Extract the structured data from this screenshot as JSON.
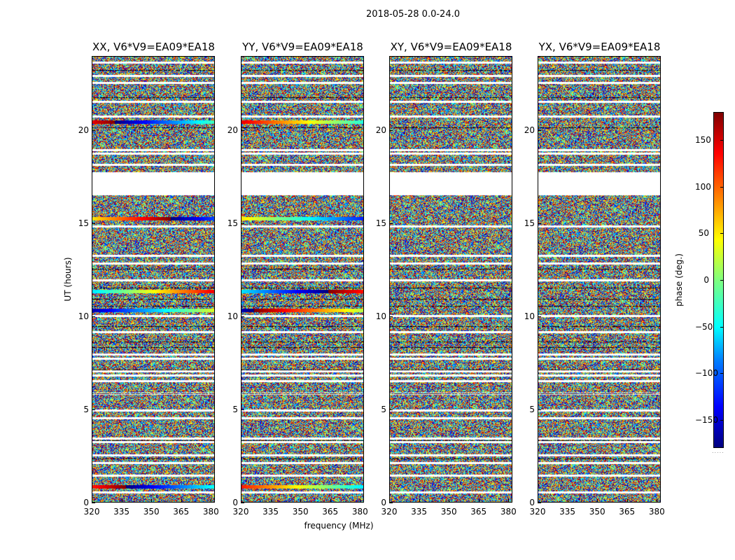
{
  "figure_title": "2018-05-28 0.0-24.0",
  "chart_data": {
    "type": "heatmap",
    "xlabel": "frequency (MHz)",
    "ylabel": "UT (hours)",
    "xlim": [
      320,
      382
    ],
    "ylim": [
      0,
      24
    ],
    "xticks": [
      320,
      335,
      350,
      365,
      380
    ],
    "yticks": [
      0,
      5,
      10,
      15,
      20
    ],
    "colorbar": {
      "label": "phase (deg.)",
      "range": [
        -180,
        180
      ],
      "ticks": [
        -150,
        -100,
        -50,
        0,
        50,
        100,
        150
      ],
      "tick_labels": [
        "−150",
        "−100",
        "−50",
        "0",
        "50",
        "100",
        "150"
      ],
      "colormap": [
        "#00007f",
        "#0000ff",
        "#007fff",
        "#00ffff",
        "#7fff7f",
        "#ffff00",
        "#ff7f00",
        "#ff0000",
        "#7f0000"
      ]
    },
    "panels": [
      {
        "title": "XX, V6*V9=EA09*EA18",
        "polarization": "XX",
        "calibrator_rows_ut": [
          0.9,
          10.4,
          11.4,
          15.3,
          20.5
        ]
      },
      {
        "title": "YY, V6*V9=EA09*EA18",
        "polarization": "YY",
        "calibrator_rows_ut": [
          0.9,
          10.4,
          11.4,
          15.3,
          20.5
        ]
      },
      {
        "title": "XY, V6*V9=EA09*EA18",
        "polarization": "XY",
        "calibrator_rows_ut": []
      },
      {
        "title": "YX, V6*V9=EA09*EA18",
        "polarization": "YX",
        "calibrator_rows_ut": []
      }
    ],
    "gap_ut": [
      16.6,
      17.8
    ],
    "flagged_rows_ut": [
      0.6,
      1.5,
      2.2,
      2.6,
      3.3,
      3.5,
      4.6,
      5.0,
      5.9,
      6.6,
      6.9,
      7.1,
      7.8,
      8.0,
      9.2,
      10.1,
      12.0,
      12.9,
      13.3,
      14.9,
      18.2,
      18.8,
      19.0,
      20.8,
      21.6,
      22.6,
      23.0,
      23.7
    ],
    "black_rows_ut": [
      2.4,
      3.4,
      5.9,
      7.2,
      8.4,
      8.7,
      9.5,
      10.6,
      11.0,
      11.6,
      12.6,
      17.2,
      20.2,
      21.8,
      23.3
    ]
  }
}
